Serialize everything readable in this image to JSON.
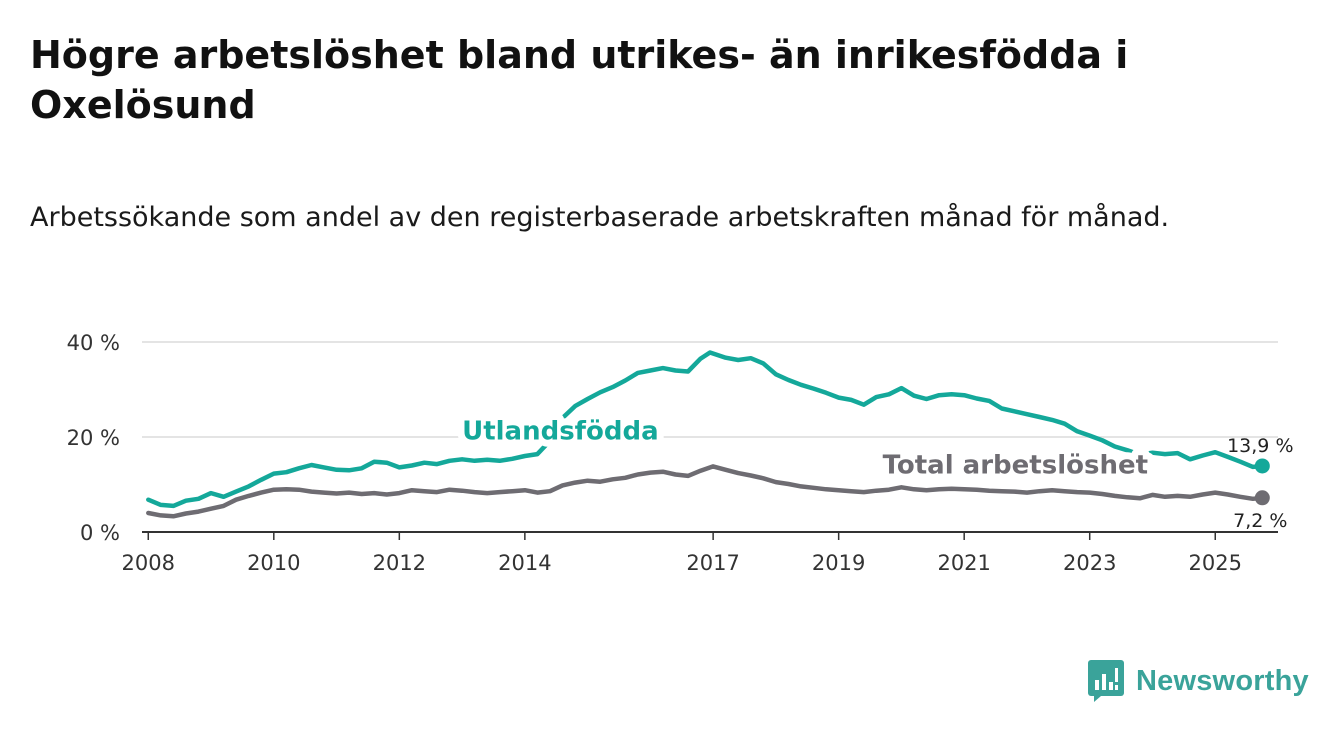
{
  "title": "Högre arbetslöshet bland utrikes- än inrikesfödda i Oxelösund",
  "subtitle": "Arbetssökande som andel av den registerbaserade arbetskraften månad för månad.",
  "brand": {
    "name": "Newsworthy"
  },
  "colors": {
    "foreign": "#14a89a",
    "total": "#6e6c72",
    "grid": "#dcdcdc",
    "brand": "#3aa39a",
    "axis": "#333333"
  },
  "chart_data": {
    "type": "line",
    "title": "Högre arbetslöshet bland utrikes- än inrikesfödda i Oxelösund",
    "xlabel": "",
    "ylabel": "",
    "xlim": [
      2007.9,
      2026.0
    ],
    "ylim": [
      0,
      40
    ],
    "grid": true,
    "x_ticks": [
      2008,
      2010,
      2012,
      2014,
      2017,
      2019,
      2021,
      2023,
      2025
    ],
    "y_ticks": [
      0,
      20,
      40
    ],
    "y_tick_labels": [
      "0 %",
      "20 %",
      "40 %"
    ],
    "series": [
      {
        "name": "Utlandsfödda",
        "color": "#14a89a",
        "end_label": "13,9 %",
        "points": [
          [
            2008.0,
            6.8
          ],
          [
            2008.2,
            5.7
          ],
          [
            2008.4,
            5.5
          ],
          [
            2008.6,
            6.6
          ],
          [
            2008.8,
            7.0
          ],
          [
            2009.0,
            8.2
          ],
          [
            2009.2,
            7.4
          ],
          [
            2009.4,
            8.5
          ],
          [
            2009.6,
            9.6
          ],
          [
            2009.8,
            11.0
          ],
          [
            2010.0,
            12.3
          ],
          [
            2010.2,
            12.6
          ],
          [
            2010.4,
            13.4
          ],
          [
            2010.6,
            14.1
          ],
          [
            2010.8,
            13.6
          ],
          [
            2011.0,
            13.1
          ],
          [
            2011.2,
            13.0
          ],
          [
            2011.4,
            13.4
          ],
          [
            2011.6,
            14.8
          ],
          [
            2011.8,
            14.6
          ],
          [
            2012.0,
            13.6
          ],
          [
            2012.2,
            14.0
          ],
          [
            2012.4,
            14.6
          ],
          [
            2012.6,
            14.3
          ],
          [
            2012.8,
            15.0
          ],
          [
            2013.0,
            15.3
          ],
          [
            2013.2,
            15.0
          ],
          [
            2013.4,
            15.2
          ],
          [
            2013.6,
            15.0
          ],
          [
            2013.8,
            15.4
          ],
          [
            2014.0,
            16.0
          ],
          [
            2014.2,
            16.4
          ],
          [
            2014.4,
            19.2
          ],
          [
            2014.6,
            24.0
          ],
          [
            2014.8,
            26.5
          ],
          [
            2015.0,
            28.0
          ],
          [
            2015.2,
            29.4
          ],
          [
            2015.4,
            30.5
          ],
          [
            2015.6,
            31.9
          ],
          [
            2015.8,
            33.5
          ],
          [
            2016.0,
            34.0
          ],
          [
            2016.2,
            34.5
          ],
          [
            2016.4,
            34.0
          ],
          [
            2016.6,
            33.8
          ],
          [
            2016.8,
            36.5
          ],
          [
            2016.95,
            37.8
          ],
          [
            2017.2,
            36.7
          ],
          [
            2017.4,
            36.2
          ],
          [
            2017.6,
            36.6
          ],
          [
            2017.8,
            35.5
          ],
          [
            2018.0,
            33.2
          ],
          [
            2018.2,
            32.0
          ],
          [
            2018.4,
            31.0
          ],
          [
            2018.6,
            30.2
          ],
          [
            2018.8,
            29.3
          ],
          [
            2019.0,
            28.3
          ],
          [
            2019.2,
            27.8
          ],
          [
            2019.4,
            26.8
          ],
          [
            2019.6,
            28.4
          ],
          [
            2019.8,
            29.0
          ],
          [
            2020.0,
            30.3
          ],
          [
            2020.2,
            28.7
          ],
          [
            2020.4,
            28.0
          ],
          [
            2020.6,
            28.8
          ],
          [
            2020.8,
            29.0
          ],
          [
            2021.0,
            28.8
          ],
          [
            2021.2,
            28.1
          ],
          [
            2021.4,
            27.6
          ],
          [
            2021.6,
            26.0
          ],
          [
            2021.8,
            25.4
          ],
          [
            2022.0,
            24.8
          ],
          [
            2022.2,
            24.2
          ],
          [
            2022.4,
            23.6
          ],
          [
            2022.6,
            22.8
          ],
          [
            2022.8,
            21.2
          ],
          [
            2023.0,
            20.3
          ],
          [
            2023.2,
            19.3
          ],
          [
            2023.4,
            18.0
          ],
          [
            2023.6,
            17.2
          ],
          [
            2023.8,
            16.3
          ],
          [
            2024.0,
            16.7
          ],
          [
            2024.2,
            16.4
          ],
          [
            2024.4,
            16.6
          ],
          [
            2024.6,
            15.3
          ],
          [
            2024.8,
            16.1
          ],
          [
            2025.0,
            16.8
          ],
          [
            2025.2,
            15.8
          ],
          [
            2025.4,
            14.8
          ],
          [
            2025.6,
            13.7
          ],
          [
            2025.75,
            13.9
          ]
        ]
      },
      {
        "name": "Total arbetslöshet",
        "color": "#6e6c72",
        "end_label": "7,2 %",
        "points": [
          [
            2008.0,
            4.0
          ],
          [
            2008.2,
            3.5
          ],
          [
            2008.4,
            3.3
          ],
          [
            2008.6,
            3.9
          ],
          [
            2008.8,
            4.3
          ],
          [
            2009.0,
            4.9
          ],
          [
            2009.2,
            5.5
          ],
          [
            2009.4,
            6.8
          ],
          [
            2009.6,
            7.6
          ],
          [
            2009.8,
            8.3
          ],
          [
            2010.0,
            8.9
          ],
          [
            2010.2,
            9.0
          ],
          [
            2010.4,
            8.9
          ],
          [
            2010.6,
            8.5
          ],
          [
            2010.8,
            8.3
          ],
          [
            2011.0,
            8.1
          ],
          [
            2011.2,
            8.3
          ],
          [
            2011.4,
            8.0
          ],
          [
            2011.6,
            8.2
          ],
          [
            2011.8,
            7.9
          ],
          [
            2012.0,
            8.2
          ],
          [
            2012.2,
            8.8
          ],
          [
            2012.4,
            8.6
          ],
          [
            2012.6,
            8.4
          ],
          [
            2012.8,
            8.9
          ],
          [
            2013.0,
            8.7
          ],
          [
            2013.2,
            8.4
          ],
          [
            2013.4,
            8.2
          ],
          [
            2013.6,
            8.4
          ],
          [
            2013.8,
            8.6
          ],
          [
            2014.0,
            8.8
          ],
          [
            2014.2,
            8.3
          ],
          [
            2014.4,
            8.6
          ],
          [
            2014.6,
            9.8
          ],
          [
            2014.8,
            10.4
          ],
          [
            2015.0,
            10.8
          ],
          [
            2015.2,
            10.6
          ],
          [
            2015.4,
            11.1
          ],
          [
            2015.6,
            11.4
          ],
          [
            2015.8,
            12.1
          ],
          [
            2016.0,
            12.5
          ],
          [
            2016.2,
            12.7
          ],
          [
            2016.4,
            12.1
          ],
          [
            2016.6,
            11.8
          ],
          [
            2016.8,
            12.9
          ],
          [
            2017.0,
            13.8
          ],
          [
            2017.2,
            13.1
          ],
          [
            2017.4,
            12.4
          ],
          [
            2017.6,
            11.9
          ],
          [
            2017.8,
            11.3
          ],
          [
            2018.0,
            10.5
          ],
          [
            2018.2,
            10.1
          ],
          [
            2018.4,
            9.6
          ],
          [
            2018.6,
            9.3
          ],
          [
            2018.8,
            9.0
          ],
          [
            2019.0,
            8.8
          ],
          [
            2019.2,
            8.6
          ],
          [
            2019.4,
            8.4
          ],
          [
            2019.6,
            8.7
          ],
          [
            2019.8,
            8.9
          ],
          [
            2020.0,
            9.4
          ],
          [
            2020.2,
            9.0
          ],
          [
            2020.4,
            8.8
          ],
          [
            2020.6,
            9.0
          ],
          [
            2020.8,
            9.1
          ],
          [
            2021.0,
            9.0
          ],
          [
            2021.2,
            8.9
          ],
          [
            2021.4,
            8.7
          ],
          [
            2021.6,
            8.6
          ],
          [
            2021.8,
            8.5
          ],
          [
            2022.0,
            8.3
          ],
          [
            2022.2,
            8.6
          ],
          [
            2022.4,
            8.8
          ],
          [
            2022.6,
            8.6
          ],
          [
            2022.8,
            8.4
          ],
          [
            2023.0,
            8.3
          ],
          [
            2023.2,
            8.0
          ],
          [
            2023.4,
            7.6
          ],
          [
            2023.6,
            7.3
          ],
          [
            2023.8,
            7.1
          ],
          [
            2024.0,
            7.8
          ],
          [
            2024.2,
            7.4
          ],
          [
            2024.4,
            7.6
          ],
          [
            2024.6,
            7.4
          ],
          [
            2024.8,
            7.9
          ],
          [
            2025.0,
            8.3
          ],
          [
            2025.2,
            7.9
          ],
          [
            2025.4,
            7.4
          ],
          [
            2025.6,
            7.0
          ],
          [
            2025.75,
            7.2
          ]
        ]
      }
    ],
    "annotations": [
      {
        "text": "Utlandsfödda",
        "series": "Utlandsfödda",
        "x": 2013.0,
        "y": 19.5
      },
      {
        "text": "Total arbetslöshet",
        "series": "Total arbetslöshet",
        "x": 2019.7,
        "y": 12.3
      }
    ]
  }
}
